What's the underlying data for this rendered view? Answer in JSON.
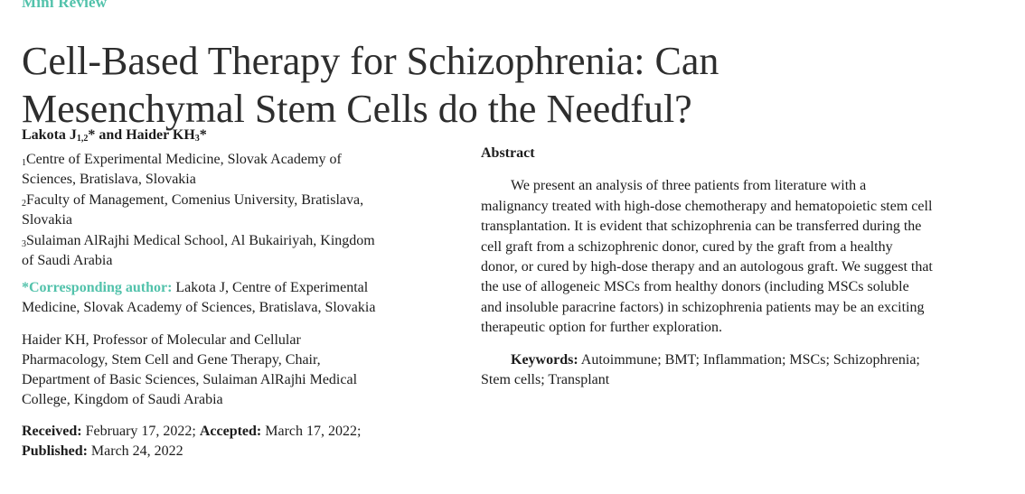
{
  "colors": {
    "accent_teal": "#52c2ab",
    "text": "#1c1c1c",
    "title_text": "#2e2e2e"
  },
  "header": {
    "kicker": "Mini Review",
    "title": "Cell-Based Therapy for Schizophrenia: Can Mesenchymal Stem Cells do the Needful?"
  },
  "authors": {
    "name1": "Lakota J",
    "name1_marker": "1,2",
    "middle": "* and Haider KH",
    "name2_marker": "3",
    "end": "*"
  },
  "affiliations": [
    {
      "marker": "1",
      "text": "Centre of Experimental Medicine, Slovak Academy of Sciences, Bratislava, Slovakia"
    },
    {
      "marker": "2",
      "text": "Faculty of Management, Comenius University, Bratislava, Slovakia"
    },
    {
      "marker": "3",
      "text": "Sulaiman AlRajhi Medical School, Al Bukairiyah, Kingdom of Saudi Arabia"
    }
  ],
  "corresponding": {
    "label": "*Corresponding author:",
    "text": " Lakota J, Centre of Experimental Medicine, Slovak Academy of Sciences, Bratislava, Slovakia"
  },
  "coauthor_note": "Haider KH, Professor of Molecular and Cellular Pharmacology, Stem Cell and Gene Therapy, Chair, Department of Basic Sciences, Sulaiman AlRajhi Medical College, Kingdom of Saudi Arabia",
  "dates": {
    "received_label": "Received:",
    "received_value": " February 17, 2022; ",
    "accepted_label": "Accepted:",
    "accepted_value": " March 17, 2022; ",
    "published_label": "Published:",
    "published_value": " March 24, 2022"
  },
  "abstract": {
    "heading": "Abstract",
    "body": "We present an analysis of three patients from literature with a malignancy treated with high-dose chemotherapy and hematopoietic stem cell transplantation. It is evident that schizophrenia can be transferred during the cell graft from a schizophrenic donor, cured by the graft from a healthy donor, or cured by high-dose therapy and an autologous graft. We suggest that the use of allogeneic MSCs from healthy donors (including MSCs soluble and insoluble paracrine factors) in schizophrenia patients may be an exciting therapeutic option for further exploration.",
    "keywords_label": "Keywords:",
    "keywords_value": " Autoimmune; BMT; Inflammation; MSCs; Schizophrenia; Stem cells; Transplant"
  }
}
